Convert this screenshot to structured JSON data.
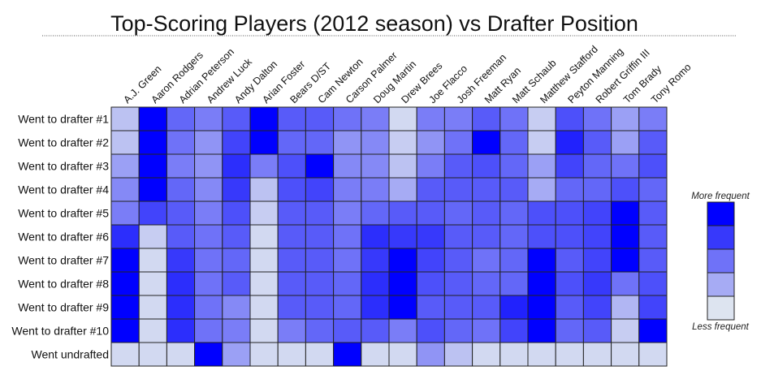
{
  "chart_data": {
    "type": "heatmap",
    "title": "Top-Scoring Players (2012 season) vs Drafter Position",
    "columns": [
      "A.J. Green",
      "Aaron Rodgers",
      "Adrian Peterson",
      "Andrew Luck",
      "Andy Dalton",
      "Arian Foster",
      "Bears D/ST",
      "Cam Newton",
      "Carson Palmer",
      "Doug Martin",
      "Drew Brees",
      "Joe Flacco",
      "Josh Freeman",
      "Matt Ryan",
      "Matt Schaub",
      "Matthew Stafford",
      "Peyton Manning",
      "Robert Griffin III",
      "Tom Brady",
      "Tony Romo"
    ],
    "rows": [
      "Went to drafter #1",
      "Went to drafter #2",
      "Went to drafter #3",
      "Went to drafter #4",
      "Went to drafter #5",
      "Went to drafter #6",
      "Went to drafter #7",
      "Went to drafter #8",
      "Went to drafter #9",
      "Went to drafter #10",
      "Went undrafted"
    ],
    "values": [
      [
        0.15,
        1.0,
        0.55,
        0.45,
        0.6,
        1.0,
        0.6,
        0.6,
        0.5,
        0.45,
        0.05,
        0.45,
        0.45,
        0.6,
        0.5,
        0.1,
        0.65,
        0.5,
        0.3,
        0.45
      ],
      [
        0.15,
        1.0,
        0.5,
        0.35,
        0.7,
        1.0,
        0.55,
        0.55,
        0.35,
        0.4,
        0.1,
        0.35,
        0.5,
        1.0,
        0.55,
        0.1,
        0.85,
        0.6,
        0.3,
        0.6
      ],
      [
        0.3,
        1.0,
        0.45,
        0.35,
        0.8,
        0.45,
        0.65,
        1.0,
        0.4,
        0.4,
        0.15,
        0.45,
        0.6,
        0.65,
        0.55,
        0.3,
        0.7,
        0.55,
        0.5,
        0.65
      ],
      [
        0.4,
        1.0,
        0.55,
        0.4,
        0.75,
        0.15,
        0.65,
        0.7,
        0.45,
        0.45,
        0.25,
        0.6,
        0.6,
        0.6,
        0.6,
        0.25,
        0.55,
        0.55,
        0.65,
        0.55
      ],
      [
        0.45,
        0.7,
        0.6,
        0.45,
        0.65,
        0.1,
        0.6,
        0.6,
        0.45,
        0.55,
        0.6,
        0.6,
        0.55,
        0.6,
        0.55,
        0.65,
        0.65,
        0.7,
        1.0,
        0.6
      ],
      [
        0.8,
        0.1,
        0.6,
        0.5,
        0.6,
        0.05,
        0.6,
        0.6,
        0.5,
        0.8,
        0.75,
        0.75,
        0.6,
        0.6,
        0.55,
        0.65,
        0.65,
        0.7,
        1.0,
        0.6
      ],
      [
        1.0,
        0.05,
        0.75,
        0.5,
        0.55,
        0.05,
        0.6,
        0.6,
        0.5,
        0.75,
        1.0,
        0.7,
        0.6,
        0.5,
        0.55,
        1.0,
        0.6,
        0.7,
        1.0,
        0.6
      ],
      [
        1.0,
        0.05,
        0.8,
        0.5,
        0.6,
        0.05,
        0.6,
        0.6,
        0.55,
        0.8,
        1.0,
        0.65,
        0.6,
        0.55,
        0.55,
        1.0,
        0.65,
        0.75,
        0.5,
        0.65
      ],
      [
        1.0,
        0.05,
        0.8,
        0.5,
        0.4,
        0.05,
        0.6,
        0.6,
        0.55,
        0.8,
        1.0,
        0.6,
        0.6,
        0.6,
        0.85,
        1.0,
        0.6,
        0.7,
        0.2,
        0.7
      ],
      [
        1.0,
        0.05,
        0.8,
        0.5,
        0.45,
        0.05,
        0.45,
        0.55,
        0.6,
        0.6,
        0.45,
        0.65,
        0.55,
        0.5,
        0.7,
        1.0,
        0.55,
        0.6,
        0.1,
        1.0
      ],
      [
        0.05,
        0.05,
        0.05,
        1.0,
        0.3,
        0.05,
        0.05,
        0.05,
        1.0,
        0.05,
        0.05,
        0.35,
        0.15,
        0.05,
        0.05,
        0.05,
        0.05,
        0.05,
        0.05,
        0.05
      ]
    ],
    "color_scale": {
      "low": "#dde4f0",
      "high": "#0000ff"
    },
    "legend": {
      "top_label": "More frequent",
      "bottom_label": "Less frequent",
      "placement": "right"
    }
  }
}
